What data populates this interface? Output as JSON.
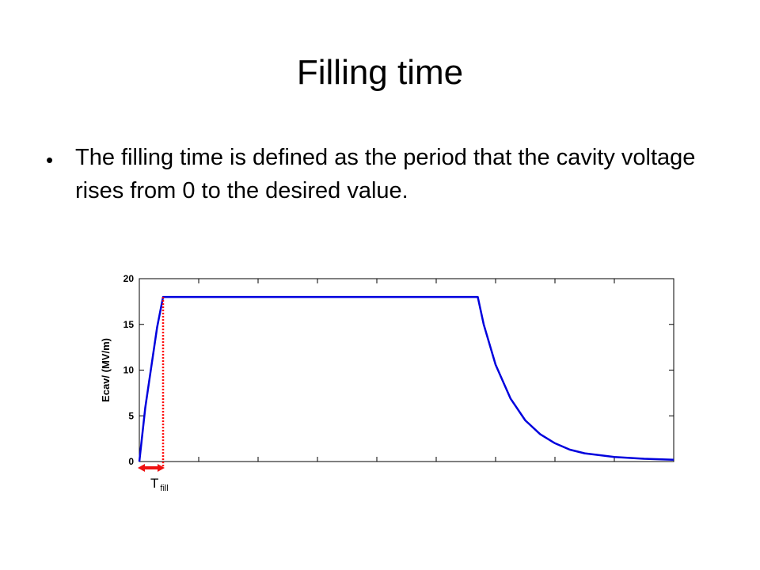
{
  "slide": {
    "title": "Filling time",
    "bullet_symbol": "•",
    "bullet_text": "The filling time is defined as the period that the cavity voltage rises from 0 to the desired value."
  },
  "chart_data": {
    "type": "line",
    "title": "",
    "xlabel": "",
    "ylabel": "Ecav/ (MV/m)",
    "ylim": [
      0,
      20
    ],
    "xlim": [
      0,
      9
    ],
    "yticks": [
      "0",
      "5",
      "10",
      "15",
      "20"
    ],
    "xtick_count": 9,
    "x_tick_labels_shown": false,
    "grid": false,
    "series": [
      {
        "color": "#0000dd",
        "x": [
          0,
          0.1,
          0.2,
          0.3,
          0.4,
          5.7,
          5.8,
          6.0,
          6.25,
          6.5,
          6.75,
          7.0,
          7.25,
          7.5,
          8.0,
          8.5,
          9.0
        ],
        "y": [
          0,
          5.9,
          10.3,
          14.7,
          18,
          18,
          15.0,
          10.6,
          6.9,
          4.5,
          3.0,
          2.0,
          1.3,
          0.9,
          0.5,
          0.3,
          0.2
        ]
      }
    ],
    "annotations": {
      "fill_marker_x": 0.4,
      "fill_marker_color": "#ff0000",
      "fill_arrow_color": "#ee1111",
      "fill_label_main": "T",
      "fill_label_sub": "fill"
    }
  }
}
